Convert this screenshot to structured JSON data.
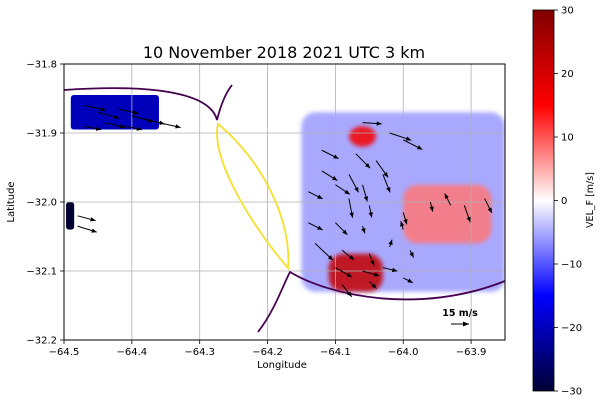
{
  "chart_data": {
    "type": "heatmap",
    "title": "10 November 2018 2021 UTC   3 km",
    "xlabel": "Longitude",
    "ylabel": "Latitude",
    "xlim": [
      -64.5,
      -63.85
    ],
    "ylim": [
      -32.2,
      -31.8
    ],
    "xticks": [
      -64.5,
      -64.4,
      -64.3,
      -64.2,
      -64.1,
      -64.0,
      -63.9
    ],
    "xtick_labels": [
      "−64.5",
      "−64.4",
      "−64.3",
      "−64.2",
      "−64.1",
      "−64.0",
      "−63.9"
    ],
    "yticks": [
      -31.8,
      -31.9,
      -32.0,
      -32.1,
      -32.2
    ],
    "ytick_labels": [
      "−31.8",
      "−31.9",
      "−32.0",
      "−32.1",
      "−32.2"
    ],
    "grid": true,
    "colorbar": {
      "label": "VEL_F [m/s]",
      "min": -30,
      "max": 30,
      "ticks": [
        30,
        20,
        10,
        0,
        -10,
        -20,
        -30
      ],
      "tick_labels": [
        "30",
        "20",
        "10",
        "0",
        "−10",
        "−20",
        "−30"
      ],
      "colors": [
        "#000033",
        "#0000ff",
        "#ffffff",
        "#ff0000",
        "#800000"
      ]
    },
    "reference_vector": {
      "speed_ms": 15,
      "label": "15 m/s"
    },
    "regions": [
      {
        "name": "",
        "lon": [
          -64.49,
          -64.36
        ],
        "lat": [
          -31.845,
          -31.895
        ],
        "value": -20
      },
      {
        "name": "",
        "lon": [
          -64.497,
          -64.485
        ],
        "lat": [
          -32.0,
          -32.04
        ],
        "value": -30
      },
      {
        "name": "",
        "lon": [
          -64.15,
          -63.85
        ],
        "lat": [
          -31.87,
          -32.13
        ],
        "value": -6
      },
      {
        "name": "",
        "lon": [
          -64.11,
          -64.03
        ],
        "lat": [
          -32.075,
          -32.13
        ],
        "value": 22
      },
      {
        "name": "",
        "lon": [
          -64.08,
          -64.04
        ],
        "lat": [
          -31.89,
          -31.92
        ],
        "value": 16
      },
      {
        "name": "",
        "lon": [
          -64.0,
          -63.87
        ],
        "lat": [
          -31.975,
          -32.06
        ],
        "value": 8
      }
    ],
    "wind_vectors": [
      {
        "lon": -64.47,
        "lat": -31.86,
        "u": 18,
        "v": -4
      },
      {
        "lon": -64.45,
        "lat": -31.87,
        "u": 18,
        "v": -5
      },
      {
        "lon": -64.42,
        "lat": -31.865,
        "u": 17,
        "v": -4
      },
      {
        "lon": -64.4,
        "lat": -31.875,
        "u": 18,
        "v": -5
      },
      {
        "lon": -64.38,
        "lat": -31.88,
        "u": 16,
        "v": -4
      },
      {
        "lon": -64.44,
        "lat": -31.885,
        "u": 17,
        "v": -4
      },
      {
        "lon": -64.47,
        "lat": -31.89,
        "u": 14,
        "v": -3
      },
      {
        "lon": -64.36,
        "lat": -31.885,
        "u": 18,
        "v": -4
      },
      {
        "lon": -64.41,
        "lat": -31.89,
        "u": 14,
        "v": -3
      },
      {
        "lon": -64.48,
        "lat": -32.02,
        "u": 15,
        "v": -4
      },
      {
        "lon": -64.48,
        "lat": -32.035,
        "u": 16,
        "v": -5
      },
      {
        "lon": -64.06,
        "lat": -31.885,
        "u": 16,
        "v": -1
      },
      {
        "lon": -64.02,
        "lat": -31.9,
        "u": 18,
        "v": -6
      },
      {
        "lon": -64.0,
        "lat": -31.91,
        "u": 16,
        "v": -8
      },
      {
        "lon": -64.12,
        "lat": -31.925,
        "u": 14,
        "v": -7
      },
      {
        "lon": -64.07,
        "lat": -31.93,
        "u": 12,
        "v": -12
      },
      {
        "lon": -64.04,
        "lat": -31.94,
        "u": 10,
        "v": -14
      },
      {
        "lon": -64.03,
        "lat": -31.96,
        "u": 6,
        "v": -15
      },
      {
        "lon": -64.12,
        "lat": -31.955,
        "u": 13,
        "v": -8
      },
      {
        "lon": -64.08,
        "lat": -31.96,
        "u": 8,
        "v": -15
      },
      {
        "lon": -64.1,
        "lat": -31.975,
        "u": 12,
        "v": -8
      },
      {
        "lon": -64.06,
        "lat": -31.975,
        "u": 4,
        "v": -14
      },
      {
        "lon": -64.14,
        "lat": -31.985,
        "u": 12,
        "v": -6
      },
      {
        "lon": -64.08,
        "lat": -31.995,
        "u": 3,
        "v": -16
      },
      {
        "lon": -64.05,
        "lat": -32.005,
        "u": 2,
        "v": -10
      },
      {
        "lon": -64.0,
        "lat": -32.015,
        "u": 3,
        "v": -10
      },
      {
        "lon": -63.96,
        "lat": -32.0,
        "u": 2,
        "v": -8
      },
      {
        "lon": -63.93,
        "lat": -32.005,
        "u": -5,
        "v": 10
      },
      {
        "lon": -63.91,
        "lat": -32.005,
        "u": 5,
        "v": -14
      },
      {
        "lon": -63.88,
        "lat": -31.995,
        "u": 6,
        "v": -12
      },
      {
        "lon": -64.14,
        "lat": -32.03,
        "u": 12,
        "v": -6
      },
      {
        "lon": -64.1,
        "lat": -32.03,
        "u": 10,
        "v": -10
      },
      {
        "lon": -64.06,
        "lat": -32.035,
        "u": 2,
        "v": -6
      },
      {
        "lon": -64.0,
        "lat": -32.04,
        "u": -2,
        "v": 7
      },
      {
        "lon": -64.13,
        "lat": -32.06,
        "u": 15,
        "v": -14
      },
      {
        "lon": -64.09,
        "lat": -32.07,
        "u": 10,
        "v": -8
      },
      {
        "lon": -64.05,
        "lat": -32.075,
        "u": 4,
        "v": -10
      },
      {
        "lon": -64.02,
        "lat": -32.065,
        "u": 2,
        "v": 6
      },
      {
        "lon": -63.99,
        "lat": -32.07,
        "u": 3,
        "v": -6
      },
      {
        "lon": -64.1,
        "lat": -32.095,
        "u": 14,
        "v": -8
      },
      {
        "lon": -64.06,
        "lat": -32.1,
        "u": 14,
        "v": -4
      },
      {
        "lon": -64.03,
        "lat": -32.095,
        "u": 12,
        "v": -3
      },
      {
        "lon": -64.09,
        "lat": -32.12,
        "u": 8,
        "v": -10
      },
      {
        "lon": -64.05,
        "lat": -32.115,
        "u": 6,
        "v": -6
      },
      {
        "lon": -64.0,
        "lat": -32.11,
        "u": 8,
        "v": -4
      }
    ]
  }
}
